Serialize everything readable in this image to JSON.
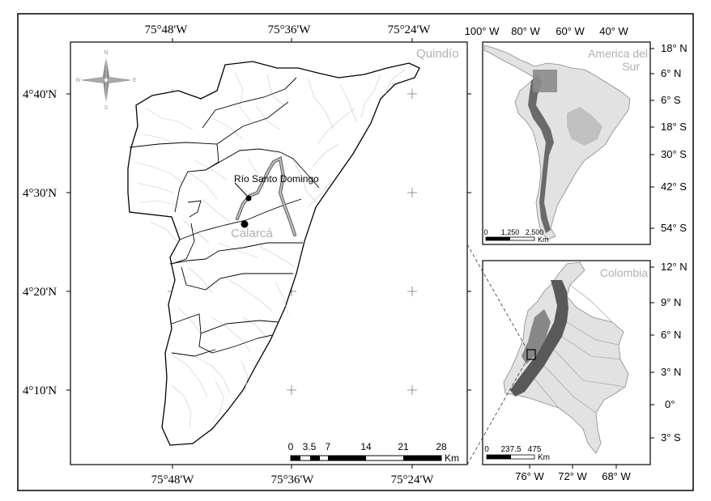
{
  "main_map": {
    "top_lon_labels": [
      "75°48'W",
      "75°36'W",
      "75°24'W"
    ],
    "bottom_lon_labels": [
      "75°48'W",
      "75°36'W",
      "75°24'W"
    ],
    "lat_labels": [
      "4°40'N",
      "4°30'N",
      "4°20'N",
      "4°10'N"
    ],
    "region_label": "Quindío",
    "river_label": "Río Santo Domingo",
    "town_label": "Calarcá",
    "north_arrow": {
      "n": "N",
      "s": "S",
      "e": "E",
      "w": "W"
    },
    "scale_bar": {
      "ticks": [
        "0",
        "3.5",
        "7",
        "14",
        "21",
        "28"
      ],
      "unit": "Km"
    }
  },
  "south_america_inset": {
    "title": "America del Sur",
    "top_lon_labels": [
      "100° W",
      "80° W",
      "60° W",
      "40° W"
    ],
    "lat_labels": [
      "18° N",
      "6° N",
      "6° S",
      "18° S",
      "30° S",
      "42° S",
      "54° S"
    ],
    "scale_bar": {
      "ticks": [
        "0",
        "1,250",
        "2,500"
      ],
      "unit": "Km"
    }
  },
  "colombia_inset": {
    "title": "Colombia",
    "bottom_lon_labels": [
      "76° W",
      "72° W",
      "68° W"
    ],
    "lat_labels": [
      "12° N",
      "9° N",
      "6° N",
      "3° N",
      "0°",
      "3° S"
    ],
    "scale_bar": {
      "ticks": [
        "0",
        "237.5",
        "475"
      ],
      "unit": "Km"
    }
  },
  "colors": {
    "frame": "#000000",
    "drainage": "#c8c8c8",
    "relief_dark": "#4a4a4a",
    "relief_light": "#e2e2e2",
    "label_gray": "#b0b0b0",
    "river_highlight": "#8c8c8c"
  }
}
